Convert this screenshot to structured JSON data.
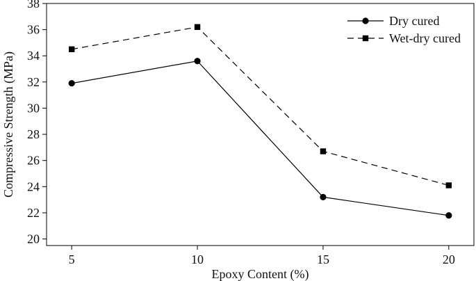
{
  "chart_data": {
    "type": "line",
    "title": "",
    "xlabel": "Epoxy Content (%)",
    "ylabel": "Compressive Strength (MPa)",
    "x": [
      5,
      10,
      15,
      20
    ],
    "xlim": [
      4,
      21
    ],
    "ylim": [
      19.5,
      38
    ],
    "xticks": [
      5,
      10,
      15,
      20
    ],
    "yticks": [
      20,
      22,
      24,
      26,
      28,
      30,
      32,
      34,
      36,
      38
    ],
    "grid": false,
    "legend_position": "top-right",
    "series": [
      {
        "name": "Dry cured",
        "values": [
          31.9,
          33.6,
          23.2,
          21.8
        ],
        "line_style": "solid",
        "marker": "circle",
        "color": "#000000"
      },
      {
        "name": "Wet-dry cured",
        "values": [
          34.5,
          36.2,
          26.7,
          24.1
        ],
        "line_style": "dashed",
        "marker": "square",
        "color": "#000000"
      }
    ]
  }
}
